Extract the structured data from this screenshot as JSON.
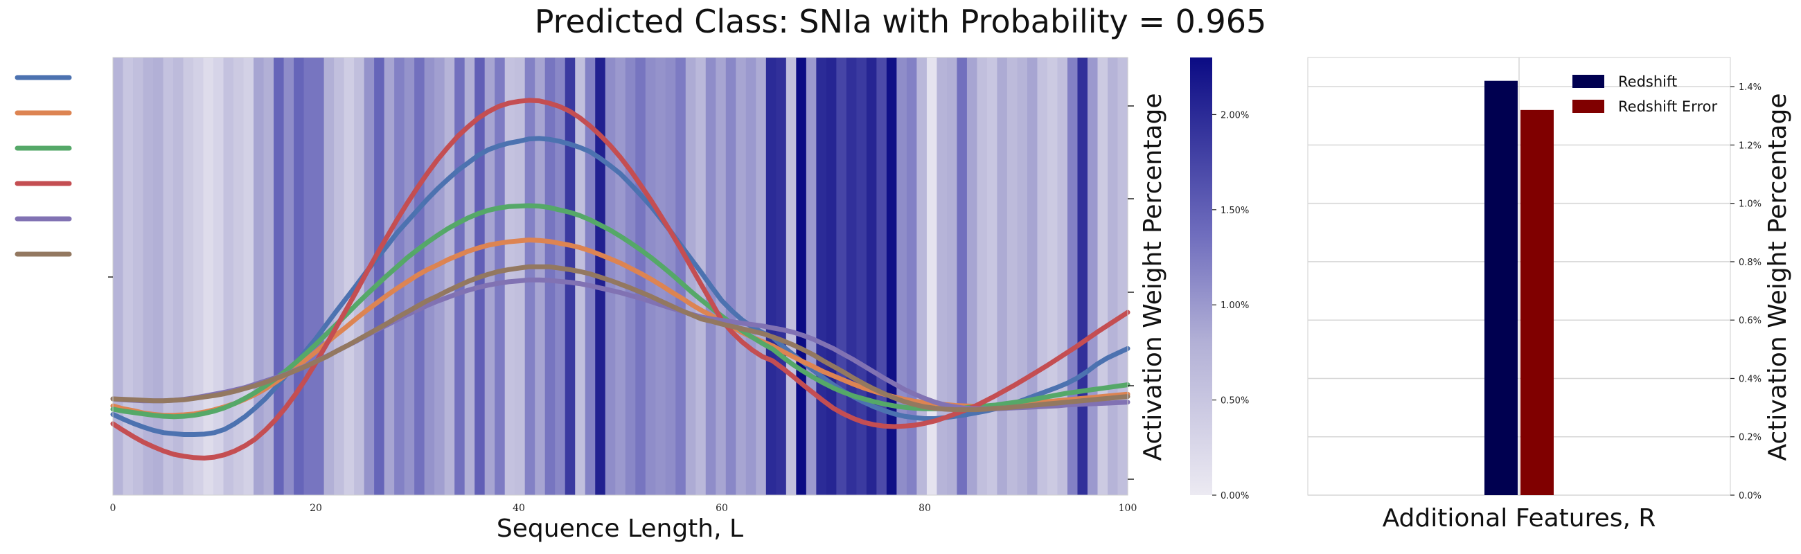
{
  "title": "Predicted Class: SNIa with Probability = 0.965",
  "chart_data": [
    {
      "type": "heatmap",
      "xlabel": "Sequence Length, L",
      "ylabel": "Activation Weight Percentage",
      "xlim": [
        0,
        100
      ],
      "xticks": [
        "0",
        "20",
        "40",
        "60",
        "80",
        "100"
      ],
      "colorbar": {
        "ticks": [
          "0.00%",
          "0.50%",
          "1.00%",
          "1.50%",
          "2.00%"
        ],
        "range": [
          0,
          2.3
        ],
        "colors": {
          "low": "#eceaf2",
          "high": "#0b0b84"
        }
      },
      "attention_weights": [
        0.75,
        0.5,
        0.6,
        0.75,
        0.8,
        0.55,
        0.65,
        0.45,
        0.35,
        0.2,
        0.3,
        0.55,
        0.45,
        0.35,
        0.9,
        0.8,
        1.45,
        1.1,
        1.45,
        1.3,
        1.3,
        0.8,
        0.6,
        0.4,
        0.6,
        1.05,
        1.45,
        0.9,
        1.2,
        1.05,
        1.35,
        1.05,
        0.95,
        0.75,
        1.35,
        0.8,
        1.5,
        0.9,
        1.25,
        0.55,
        0.6,
        1.2,
        0.9,
        1.3,
        1.15,
        1.85,
        0.6,
        1.2,
        2.1,
        1.1,
        1.0,
        1.15,
        1.3,
        1.1,
        1.05,
        1.1,
        1.25,
        0.85,
        0.7,
        1.1,
        0.9,
        1.15,
        0.9,
        1.0,
        0.85,
        2.0,
        1.95,
        0.6,
        2.3,
        1.0,
        2.0,
        2.05,
        1.75,
        1.95,
        1.85,
        2.05,
        1.7,
        2.25,
        1.1,
        1.2,
        0.7,
        0.1,
        0.75,
        0.8,
        1.35,
        0.9,
        0.6,
        0.5,
        0.85,
        0.65,
        0.75,
        0.9,
        0.55,
        0.45,
        0.6,
        1.2,
        1.95,
        1.0,
        0.45,
        0.75,
        0.6
      ],
      "series": [
        {
          "color": "#4c72b0",
          "values": [
            0.385,
            0.375,
            0.366,
            0.358,
            0.351,
            0.346,
            0.344,
            0.342,
            0.342,
            0.343,
            0.346,
            0.353,
            0.365,
            0.38,
            0.398,
            0.418,
            0.441,
            0.467,
            0.493,
            0.52,
            0.546,
            0.575,
            0.604,
            0.632,
            0.66,
            0.689,
            0.716,
            0.743,
            0.771,
            0.795,
            0.819,
            0.843,
            0.865,
            0.885,
            0.904,
            0.92,
            0.936,
            0.948,
            0.956,
            0.962,
            0.966,
            0.971,
            0.972,
            0.97,
            0.966,
            0.96,
            0.953,
            0.944,
            0.93,
            0.914,
            0.897,
            0.875,
            0.852,
            0.828,
            0.801,
            0.773,
            0.744,
            0.715,
            0.686,
            0.656,
            0.627,
            0.605,
            0.586,
            0.571,
            0.559,
            0.549,
            0.53,
            0.513,
            0.496,
            0.479,
            0.463,
            0.448,
            0.434,
            0.422,
            0.411,
            0.401,
            0.393,
            0.386,
            0.381,
            0.378,
            0.376,
            0.376,
            0.378,
            0.381,
            0.384,
            0.388,
            0.392,
            0.397,
            0.403,
            0.41,
            0.418,
            0.426,
            0.434,
            0.442,
            0.451,
            0.462,
            0.476,
            0.492,
            0.505,
            0.515,
            0.525
          ]
        },
        {
          "color": "#dd8452",
          "values": [
            0.403,
            0.397,
            0.393,
            0.388,
            0.385,
            0.383,
            0.383,
            0.384,
            0.386,
            0.39,
            0.395,
            0.401,
            0.408,
            0.417,
            0.427,
            0.439,
            0.453,
            0.468,
            0.484,
            0.501,
            0.518,
            0.536,
            0.554,
            0.571,
            0.589,
            0.606,
            0.622,
            0.638,
            0.653,
            0.667,
            0.681,
            0.693,
            0.703,
            0.714,
            0.723,
            0.732,
            0.739,
            0.745,
            0.749,
            0.752,
            0.754,
            0.756,
            0.755,
            0.753,
            0.749,
            0.745,
            0.74,
            0.733,
            0.725,
            0.716,
            0.707,
            0.696,
            0.685,
            0.673,
            0.66,
            0.646,
            0.633,
            0.619,
            0.606,
            0.595,
            0.583,
            0.571,
            0.559,
            0.549,
            0.54,
            0.531,
            0.519,
            0.508,
            0.497,
            0.487,
            0.476,
            0.467,
            0.458,
            0.449,
            0.441,
            0.434,
            0.428,
            0.422,
            0.417,
            0.413,
            0.41,
            0.408,
            0.406,
            0.404,
            0.403,
            0.402,
            0.402,
            0.403,
            0.405,
            0.406,
            0.408,
            0.41,
            0.412,
            0.414,
            0.416,
            0.418,
            0.42,
            0.422,
            0.424,
            0.426,
            0.428
          ]
        },
        {
          "color": "#55a868",
          "values": [
            0.396,
            0.392,
            0.389,
            0.386,
            0.383,
            0.381,
            0.38,
            0.381,
            0.383,
            0.387,
            0.392,
            0.399,
            0.408,
            0.419,
            0.431,
            0.445,
            0.46,
            0.477,
            0.495,
            0.514,
            0.534,
            0.555,
            0.576,
            0.597,
            0.619,
            0.64,
            0.66,
            0.68,
            0.699,
            0.718,
            0.735,
            0.751,
            0.766,
            0.78,
            0.792,
            0.803,
            0.812,
            0.819,
            0.824,
            0.827,
            0.828,
            0.829,
            0.828,
            0.825,
            0.82,
            0.815,
            0.808,
            0.799,
            0.788,
            0.777,
            0.764,
            0.75,
            0.735,
            0.719,
            0.702,
            0.684,
            0.665,
            0.646,
            0.628,
            0.611,
            0.594,
            0.578,
            0.563,
            0.549,
            0.536,
            0.524,
            0.507,
            0.491,
            0.477,
            0.464,
            0.452,
            0.441,
            0.432,
            0.424,
            0.418,
            0.412,
            0.407,
            0.403,
            0.4,
            0.398,
            0.397,
            0.397,
            0.397,
            0.398,
            0.399,
            0.401,
            0.403,
            0.405,
            0.408,
            0.411,
            0.414,
            0.418,
            0.422,
            0.426,
            0.43,
            0.433,
            0.436,
            0.439,
            0.442,
            0.445,
            0.448
          ]
        },
        {
          "color": "#c44e52",
          "values": [
            0.365,
            0.351,
            0.338,
            0.326,
            0.316,
            0.307,
            0.3,
            0.296,
            0.293,
            0.292,
            0.294,
            0.299,
            0.307,
            0.318,
            0.332,
            0.351,
            0.373,
            0.399,
            0.428,
            0.46,
            0.495,
            0.532,
            0.57,
            0.608,
            0.647,
            0.687,
            0.725,
            0.762,
            0.799,
            0.834,
            0.867,
            0.898,
            0.927,
            0.953,
            0.977,
            0.997,
            1.015,
            1.029,
            1.04,
            1.047,
            1.051,
            1.053,
            1.052,
            1.047,
            1.04,
            1.03,
            1.016,
            0.999,
            0.979,
            0.957,
            0.932,
            0.904,
            0.873,
            0.841,
            0.807,
            0.772,
            0.736,
            0.698,
            0.66,
            0.623,
            0.585,
            0.56,
            0.539,
            0.522,
            0.508,
            0.499,
            0.483,
            0.466,
            0.448,
            0.431,
            0.414,
            0.398,
            0.386,
            0.376,
            0.368,
            0.363,
            0.36,
            0.359,
            0.36,
            0.362,
            0.366,
            0.371,
            0.378,
            0.386,
            0.394,
            0.403,
            0.414,
            0.425,
            0.437,
            0.449,
            0.462,
            0.475,
            0.488,
            0.502,
            0.516,
            0.53,
            0.545,
            0.56,
            0.574,
            0.588,
            0.602
          ]
        },
        {
          "color": "#8172b3",
          "values": [
            0.418,
            0.416,
            0.415,
            0.414,
            0.414,
            0.414,
            0.415,
            0.417,
            0.42,
            0.424,
            0.428,
            0.432,
            0.437,
            0.442,
            0.449,
            0.456,
            0.463,
            0.47,
            0.479,
            0.488,
            0.498,
            0.508,
            0.519,
            0.53,
            0.541,
            0.553,
            0.564,
            0.575,
            0.586,
            0.597,
            0.607,
            0.617,
            0.626,
            0.634,
            0.642,
            0.649,
            0.655,
            0.66,
            0.664,
            0.667,
            0.669,
            0.671,
            0.671,
            0.67,
            0.668,
            0.666,
            0.663,
            0.659,
            0.654,
            0.649,
            0.644,
            0.638,
            0.632,
            0.625,
            0.618,
            0.611,
            0.605,
            0.598,
            0.592,
            0.588,
            0.585,
            0.582,
            0.579,
            0.576,
            0.573,
            0.569,
            0.565,
            0.56,
            0.553,
            0.545,
            0.535,
            0.525,
            0.513,
            0.501,
            0.488,
            0.475,
            0.462,
            0.45,
            0.438,
            0.428,
            0.419,
            0.411,
            0.405,
            0.401,
            0.398,
            0.397,
            0.397,
            0.397,
            0.398,
            0.399,
            0.4,
            0.401,
            0.402,
            0.403,
            0.405,
            0.406,
            0.407,
            0.408,
            0.409,
            0.41,
            0.411
          ]
        },
        {
          "color": "#937860",
          "values": [
            0.418,
            0.417,
            0.416,
            0.415,
            0.414,
            0.414,
            0.415,
            0.416,
            0.419,
            0.422,
            0.425,
            0.429,
            0.434,
            0.44,
            0.446,
            0.453,
            0.461,
            0.469,
            0.478,
            0.487,
            0.497,
            0.507,
            0.519,
            0.53,
            0.542,
            0.554,
            0.566,
            0.578,
            0.591,
            0.603,
            0.615,
            0.627,
            0.637,
            0.648,
            0.658,
            0.668,
            0.676,
            0.683,
            0.689,
            0.693,
            0.696,
            0.699,
            0.699,
            0.699,
            0.696,
            0.693,
            0.689,
            0.684,
            0.677,
            0.67,
            0.662,
            0.654,
            0.645,
            0.636,
            0.626,
            0.616,
            0.606,
            0.597,
            0.588,
            0.583,
            0.577,
            0.572,
            0.567,
            0.562,
            0.557,
            0.55,
            0.542,
            0.533,
            0.523,
            0.512,
            0.499,
            0.487,
            0.475,
            0.462,
            0.45,
            0.439,
            0.429,
            0.42,
            0.412,
            0.406,
            0.401,
            0.398,
            0.396,
            0.395,
            0.395,
            0.395,
            0.396,
            0.398,
            0.399,
            0.401,
            0.403,
            0.405,
            0.407,
            0.409,
            0.411,
            0.413,
            0.415,
            0.417,
            0.419,
            0.421,
            0.423
          ]
        }
      ]
    },
    {
      "type": "bar",
      "xlabel": "Additional Features, R",
      "ylabel": "Activation Weight Percentage",
      "ylim": [
        0,
        1.5
      ],
      "yticks": [
        "0.0%",
        "0.2%",
        "0.4%",
        "0.6%",
        "0.8%",
        "1.0%",
        "1.2%",
        "1.4%"
      ],
      "legend_position": "top-right",
      "series": [
        {
          "name": "Redshift",
          "value": 1.42,
          "color": "#000050"
        },
        {
          "name": "Redshift Error",
          "value": 1.32,
          "color": "#800000"
        }
      ]
    }
  ]
}
